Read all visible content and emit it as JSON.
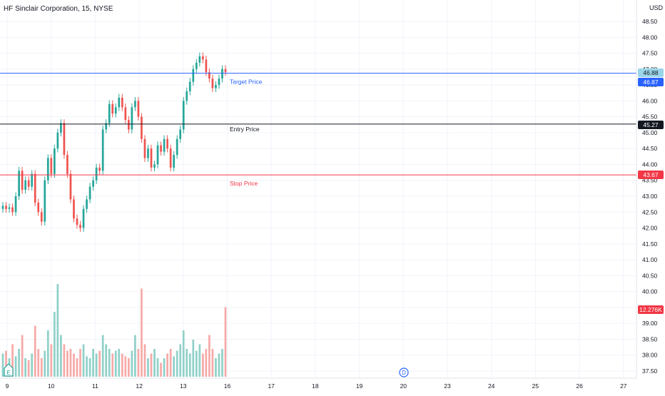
{
  "title": "HF Sinclair Corporation, 15, NYSE",
  "currency": "USD",
  "colors": {
    "up": "#26a69a",
    "down": "#ef5350",
    "volume_up": "#8fd1c8",
    "volume_down": "#f7a9a7",
    "target": "#2962ff",
    "entry": "#131722",
    "stop": "#f23645",
    "grid": "#f0f3fa",
    "axis_text": "#131722"
  },
  "icons": {
    "earnings_marker": "earnings-e-icon",
    "dividend_marker": "dividend-d-icon"
  },
  "markers": {
    "earnings": "E",
    "dividend": "D"
  },
  "chart_data": {
    "type": "candlestick",
    "title": "HF Sinclair Corporation, 15, NYSE",
    "y_ticks": [
      "48.50",
      "48.00",
      "47.50",
      "47.00",
      "46.50",
      "46.00",
      "45.50",
      "45.00",
      "44.50",
      "44.00",
      "43.50",
      "43.00",
      "42.50",
      "42.00",
      "41.50",
      "41.00",
      "40.50",
      "40.00",
      "39.50",
      "39.00",
      "38.50",
      "38.00",
      "37.50"
    ],
    "y_range": [
      37.25,
      48.75
    ],
    "x_ticks": [
      "9",
      "10",
      "11",
      "12",
      "13",
      "16",
      "17",
      "18",
      "19",
      "20",
      "23",
      "24",
      "25",
      "26",
      "27"
    ],
    "lines": [
      {
        "name": "Target Price",
        "value": 46.87,
        "color": "#2962ff"
      },
      {
        "name": "Entry Price",
        "value": 45.27,
        "color": "#131722"
      },
      {
        "name": "Stop Price",
        "value": 43.67,
        "color": "#f23645"
      }
    ],
    "price_labels": [
      {
        "text": "46.88",
        "bg": "#9ad5e8",
        "fg": "#131722"
      },
      {
        "text": "46.87",
        "bg": "#2962ff",
        "fg": "#ffffff"
      },
      {
        "text": "45.27",
        "bg": "#131722",
        "fg": "#ffffff"
      },
      {
        "text": "43.67",
        "bg": "#f23645",
        "fg": "#ffffff"
      },
      {
        "text": "12.276K",
        "bg": "#f23645",
        "fg": "#ffffff"
      }
    ],
    "candles_close": [
      42.7,
      42.6,
      42.65,
      42.5,
      43.0,
      43.8,
      43.2,
      43.5,
      43.3,
      43.7,
      42.8,
      42.5,
      42.2,
      43.5,
      44.2,
      43.7,
      44.5,
      45.0,
      45.3,
      44.3,
      43.7,
      42.9,
      42.3,
      42.1,
      42.0,
      42.6,
      42.9,
      43.3,
      43.5,
      43.9,
      43.8,
      45.1,
      45.3,
      45.9,
      45.6,
      45.8,
      46.1,
      45.8,
      45.4,
      45.1,
      45.8,
      46.0,
      45.5,
      44.8,
      44.2,
      44.5,
      43.9,
      44.0,
      44.6,
      44.4,
      44.8,
      44.5,
      43.9,
      44.3,
      44.8,
      45.1,
      46.0,
      46.3,
      46.6,
      47.0,
      47.2,
      47.4,
      47.3,
      46.9,
      46.7,
      46.4,
      46.5,
      46.7,
      47.0,
      46.9
    ],
    "volume": [
      0.25,
      0.28,
      0.2,
      0.35,
      0.22,
      0.3,
      0.45,
      0.2,
      0.18,
      0.25,
      0.55,
      0.3,
      0.2,
      0.28,
      0.5,
      0.35,
      0.7,
      1.0,
      0.45,
      0.35,
      0.28,
      0.3,
      0.25,
      0.2,
      0.3,
      0.35,
      0.22,
      0.2,
      0.3,
      0.25,
      0.28,
      0.45,
      0.35,
      0.3,
      0.25,
      0.28,
      0.3,
      0.25,
      0.22,
      0.2,
      0.28,
      0.45,
      0.3,
      0.95,
      0.35,
      0.2,
      0.25,
      0.3,
      0.2,
      0.15,
      0.2,
      0.25,
      0.3,
      0.22,
      0.28,
      0.35,
      0.5,
      0.3,
      0.25,
      0.4,
      0.28,
      0.35,
      0.25,
      0.3,
      0.45,
      0.3,
      0.2,
      0.25,
      0.3,
      0.75
    ],
    "volume_label": "12.276K"
  }
}
